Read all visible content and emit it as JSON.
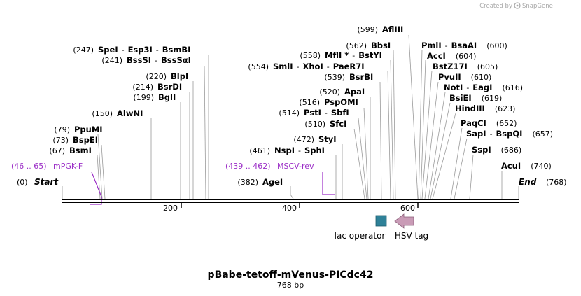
{
  "credit": {
    "prefix": "Created by",
    "brand": "SnapGene"
  },
  "plasmid": {
    "name": "pBabe-tetoff-mVenus-PICdc42",
    "length": "768 bp"
  },
  "ends": {
    "start": {
      "label": "Start",
      "pos": "(0)"
    },
    "end": {
      "label": "End",
      "pos": "(768)"
    }
  },
  "ruler": {
    "ticks": [
      "200",
      "400",
      "600"
    ]
  },
  "sites": [
    {
      "pos": "(599)",
      "parts": [
        "AflIII"
      ]
    },
    {
      "pos": "(562)",
      "parts": [
        "BbsI"
      ]
    },
    {
      "pos": "(558)",
      "parts": [
        "MflI *",
        "BstYI"
      ]
    },
    {
      "pos": "(554)",
      "parts": [
        "SmlI",
        "XhoI",
        "PaeR7I"
      ]
    },
    {
      "pos": "(539)",
      "parts": [
        "BsrBI"
      ]
    },
    {
      "pos": "(520)",
      "parts": [
        "ApaI"
      ]
    },
    {
      "pos": "(516)",
      "parts": [
        "PspOMI"
      ]
    },
    {
      "pos": "(514)",
      "parts": [
        "PstI",
        "SbfI"
      ]
    },
    {
      "pos": "(510)",
      "parts": [
        "SfcI"
      ]
    },
    {
      "pos": "(472)",
      "parts": [
        "StyI"
      ]
    },
    {
      "pos": "(461)",
      "parts": [
        "NspI",
        "SphI"
      ]
    },
    {
      "pos": "(382)",
      "parts": [
        "AgeI"
      ]
    },
    {
      "pos": "(247)",
      "parts": [
        "SpeI",
        "Esp3I",
        "BsmBI"
      ]
    },
    {
      "pos": "(241)",
      "parts": [
        "BssSI",
        "BssSαI"
      ]
    },
    {
      "pos": "(220)",
      "parts": [
        "BlpI"
      ]
    },
    {
      "pos": "(214)",
      "parts": [
        "BsrDI"
      ]
    },
    {
      "pos": "(199)",
      "parts": [
        "BglI"
      ]
    },
    {
      "pos": "(150)",
      "parts": [
        "AlwNI"
      ]
    },
    {
      "pos": "(79)",
      "parts": [
        "PpuMI"
      ]
    },
    {
      "pos": "(73)",
      "parts": [
        "BspEI"
      ]
    },
    {
      "pos": "(67)",
      "parts": [
        "BsmI"
      ]
    },
    {
      "pos": "(600)",
      "parts": [
        "PmlI",
        "BsaAI"
      ]
    },
    {
      "pos": "(604)",
      "parts": [
        "AccI"
      ]
    },
    {
      "pos": "(605)",
      "parts": [
        "BstZ17I"
      ]
    },
    {
      "pos": "(610)",
      "parts": [
        "PvuII"
      ]
    },
    {
      "pos": "(616)",
      "parts": [
        "NotI",
        "EagI"
      ]
    },
    {
      "pos": "(619)",
      "parts": [
        "BsiEI"
      ]
    },
    {
      "pos": "(623)",
      "parts": [
        "HindIII"
      ]
    },
    {
      "pos": "(652)",
      "parts": [
        "PaqCI"
      ]
    },
    {
      "pos": "(657)",
      "parts": [
        "SapI",
        "BspQI"
      ]
    },
    {
      "pos": "(686)",
      "parts": [
        "SspI"
      ]
    },
    {
      "pos": "(740)",
      "parts": [
        "AcuI"
      ]
    }
  ],
  "primers": [
    {
      "range": "(46 .. 65)",
      "name": "mPGK-F"
    },
    {
      "range": "(439 .. 462)",
      "name": "MSCV-rev"
    }
  ],
  "features": [
    {
      "name": "lac operator",
      "color": "#2e8198"
    },
    {
      "name": "HSV tag",
      "color": "#c99bb6"
    }
  ],
  "colors": {
    "primer": "#9c2fc7",
    "backbone": "#000000"
  }
}
